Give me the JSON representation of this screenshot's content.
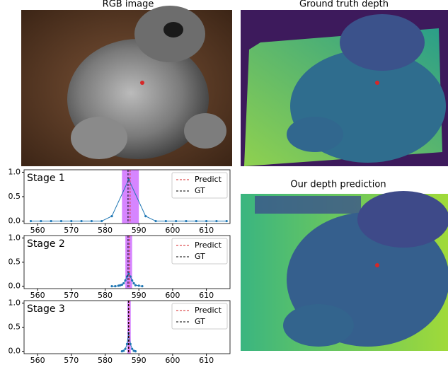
{
  "panels": [
    {
      "title": "RGB image"
    },
    {
      "title": "Ground truth depth"
    },
    {
      "title": "Our depth prediction"
    }
  ],
  "chart_data": [
    {
      "type": "line",
      "title": "Stage 1",
      "xlim": [
        556,
        617
      ],
      "ylim": [
        -0.05,
        1.05
      ],
      "xticks": [
        560,
        570,
        580,
        590,
        600,
        610
      ],
      "yticks": [
        {
          "value": 0,
          "label": "0.0"
        },
        {
          "value": 0.5,
          "label": "0.5"
        },
        {
          "value": 1,
          "label": "1.0"
        }
      ],
      "band": [
        585,
        590
      ],
      "band_color": "#cc66ff",
      "series": [
        {
          "color": "#1f77b4",
          "x": [
            558,
            561,
            564,
            567,
            570,
            573,
            576,
            579,
            582,
            587,
            592,
            595,
            598,
            601,
            604,
            607,
            610,
            613,
            616
          ],
          "values": [
            0,
            0,
            0,
            0,
            0,
            0,
            0,
            0,
            0.1,
            0.85,
            0.1,
            0,
            0,
            0,
            0,
            0,
            0,
            0,
            0
          ]
        }
      ],
      "vlines": [
        {
          "name": "Predict",
          "color": "#d62728",
          "x": 587.4
        },
        {
          "name": "GT",
          "color": "#000000",
          "x": 586.8
        }
      ]
    },
    {
      "type": "line",
      "title": "Stage 2",
      "xlim": [
        556,
        617
      ],
      "ylim": [
        -0.05,
        1.05
      ],
      "xticks": [
        560,
        570,
        580,
        590,
        600,
        610
      ],
      "yticks": [
        {
          "value": 0,
          "label": "0.0"
        },
        {
          "value": 0.5,
          "label": "0.5"
        },
        {
          "value": 1,
          "label": "1.0"
        }
      ],
      "band": [
        586,
        588
      ],
      "band_color": "#cc66ff",
      "series": [
        {
          "color": "#1f77b4",
          "x": [
            582,
            583,
            584,
            584.5,
            585,
            585.5,
            586,
            586.5,
            587,
            587.5,
            588,
            588.5,
            589,
            590,
            591
          ],
          "values": [
            0,
            0,
            0.01,
            0.02,
            0.03,
            0.06,
            0.12,
            0.2,
            0.26,
            0.2,
            0.12,
            0.06,
            0.02,
            0.01,
            0
          ]
        }
      ],
      "vlines": [
        {
          "name": "Predict",
          "color": "#d62728",
          "x": 587.2
        },
        {
          "name": "GT",
          "color": "#000000",
          "x": 586.8
        }
      ]
    },
    {
      "type": "line",
      "title": "Stage 3",
      "xlim": [
        556,
        617
      ],
      "ylim": [
        -0.05,
        1.05
      ],
      "xticks": [
        560,
        570,
        580,
        590,
        600,
        610
      ],
      "yticks": [
        {
          "value": 0,
          "label": "0.0"
        },
        {
          "value": 0.5,
          "label": "0.5"
        },
        {
          "value": 1,
          "label": "1.0"
        }
      ],
      "band": [
        586.6,
        587.6
      ],
      "band_color": "#cc66ff",
      "series": [
        {
          "color": "#1f77b4",
          "x": [
            585,
            585.5,
            586,
            586.5,
            587,
            587.5,
            588,
            588.5,
            589
          ],
          "values": [
            0,
            0.01,
            0.05,
            0.15,
            0.38,
            0.15,
            0.05,
            0.01,
            0
          ]
        }
      ],
      "vlines": [
        {
          "name": "Predict",
          "color": "#d62728",
          "x": 587.1
        },
        {
          "name": "GT",
          "color": "#000000",
          "x": 586.9
        }
      ]
    }
  ]
}
